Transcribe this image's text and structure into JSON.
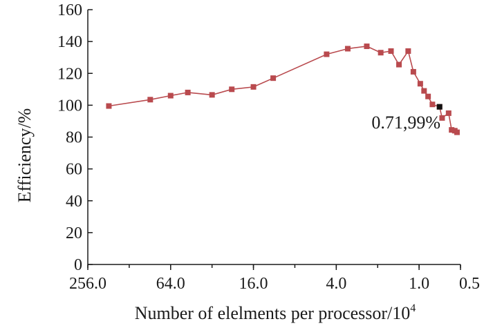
{
  "chart_data": {
    "type": "line",
    "title": "",
    "xlabel": "Number of elelments per processor/10",
    "xlabel_superscript": "4",
    "ylabel": "Efficiency/%",
    "x_scale": "log2, reversed",
    "xlim": [
      256,
      0.5
    ],
    "ylim": [
      0,
      160
    ],
    "x_ticks": [
      256,
      64,
      16,
      4,
      1,
      0.5
    ],
    "x_tick_labels": [
      "256.0",
      "64.0",
      "16.0",
      "4.0",
      "1.0",
      "0.5"
    ],
    "y_ticks": [
      0,
      20,
      40,
      60,
      80,
      100,
      120,
      140,
      160
    ],
    "y_tick_labels": [
      "0",
      "20",
      "40",
      "60",
      "80",
      "100",
      "120",
      "140",
      "160"
    ],
    "grid": false,
    "series": [
      {
        "color": "#b94a4e",
        "marker": "square",
        "points": [
          {
            "x": 180,
            "y": 99.5
          },
          {
            "x": 90,
            "y": 103.5
          },
          {
            "x": 64,
            "y": 106
          },
          {
            "x": 48,
            "y": 108
          },
          {
            "x": 32,
            "y": 106.5
          },
          {
            "x": 23,
            "y": 110
          },
          {
            "x": 16,
            "y": 111.5
          },
          {
            "x": 11.5,
            "y": 117
          },
          {
            "x": 4.7,
            "y": 132
          },
          {
            "x": 3.3,
            "y": 135.5
          },
          {
            "x": 2.4,
            "y": 137
          },
          {
            "x": 1.9,
            "y": 133
          },
          {
            "x": 1.6,
            "y": 134
          },
          {
            "x": 1.4,
            "y": 125.5
          },
          {
            "x": 1.2,
            "y": 134
          },
          {
            "x": 1.1,
            "y": 121
          },
          {
            "x": 0.98,
            "y": 113.5
          },
          {
            "x": 0.92,
            "y": 109
          },
          {
            "x": 0.86,
            "y": 105.5
          },
          {
            "x": 0.8,
            "y": 100.5
          },
          {
            "x": 0.71,
            "y": 99
          },
          {
            "x": 0.68,
            "y": 92
          },
          {
            "x": 0.61,
            "y": 95
          },
          {
            "x": 0.58,
            "y": 84.5
          },
          {
            "x": 0.55,
            "y": 84
          },
          {
            "x": 0.53,
            "y": 83
          }
        ]
      }
    ],
    "highlight": {
      "x": 0.71,
      "y": 99,
      "color": "#111111",
      "label": "0.71,99%"
    }
  }
}
